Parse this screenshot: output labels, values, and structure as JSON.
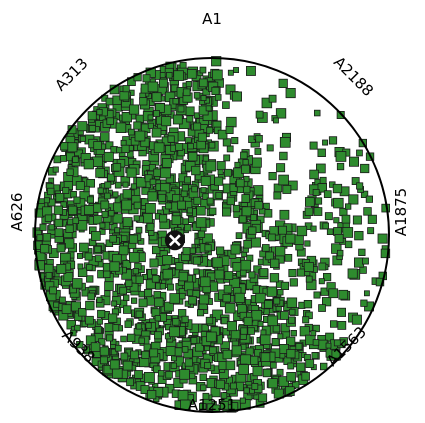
{
  "chart_data": {
    "type": "scatter",
    "subtype": "radviz",
    "title": "",
    "anchors": [
      "A1",
      "A1875",
      "A2188",
      "A313",
      "A626",
      "A938",
      "A1251",
      "A1563"
    ],
    "anchor_order_clockwise_from_top": [
      "A1",
      "A2188",
      "A1875",
      "A1563",
      "A1251",
      "A938",
      "A626",
      "A313"
    ],
    "series": [
      {
        "name": "",
        "marker": "square",
        "color": "#2e8b2e",
        "edge_color": "#1a1a1a",
        "approx_point_count": 2500,
        "distribution": "dense cloud filling the left/lower half of the unit circle; sparse scatter toward A2188 and A1875"
      }
    ],
    "centroid_marker": {
      "symbol": "X",
      "x": -0.21,
      "y": -0.03,
      "color": "#111111"
    },
    "circle": {
      "color": "#000000",
      "radius_units": 1.0
    },
    "xlim": [
      -1,
      1
    ],
    "ylim": [
      -1,
      1
    ],
    "grid": false,
    "legend": "none"
  }
}
